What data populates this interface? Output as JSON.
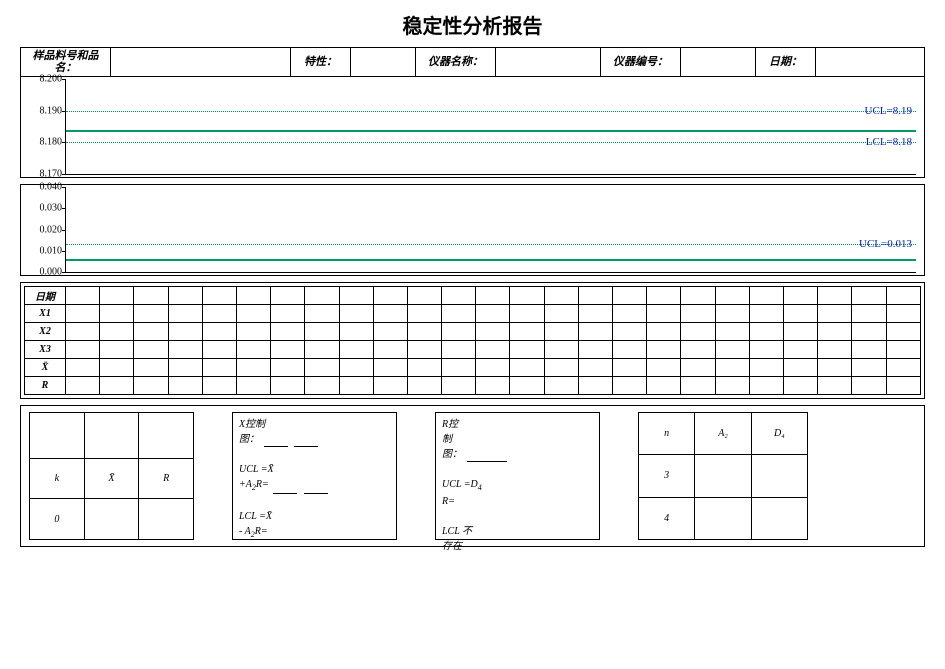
{
  "title": "稳定性分析报告",
  "header": {
    "sample_label": "样品料号和品\n名：",
    "char_label": "特性：",
    "instr_name_label": "仪器名称：",
    "instr_id_label": "仪器编号：",
    "date_label": "日期："
  },
  "chart1": {
    "type": "control-chart",
    "ylim": [
      8.17,
      8.2
    ],
    "yticks": [
      8.2,
      8.19,
      8.18,
      8.17
    ],
    "ytick_labels": [
      "8.200",
      "8.190",
      "8.180",
      "8.170"
    ],
    "ucl": {
      "value": 8.19,
      "label": "UCL=8.19",
      "style": "dotted",
      "color": "#009966",
      "label_color": "#0020c0"
    },
    "center": {
      "value": 8.184,
      "style": "solid",
      "color": "#009966"
    },
    "lcl": {
      "value": 8.18,
      "label": "LCL=8.18",
      "style": "dotted",
      "color": "#009966",
      "label_color": "#0020c0"
    },
    "background_color": "#ffffff",
    "axis_color": "#000000"
  },
  "chart2": {
    "type": "control-chart",
    "ylim": [
      0.0,
      0.04
    ],
    "yticks": [
      0.04,
      0.03,
      0.02,
      0.01,
      0.0
    ],
    "ytick_labels": [
      "0.040",
      "0.030",
      "0.020",
      "0.010",
      "0.000"
    ],
    "ucl": {
      "value": 0.013,
      "label": "UCL=0.013",
      "style": "dotted",
      "color": "#009966",
      "label_color": "#0020c0"
    },
    "center": {
      "value": 0.006,
      "style": "solid",
      "color": "#009966"
    },
    "background_color": "#ffffff",
    "axis_color": "#000000"
  },
  "grid": {
    "row_labels": [
      "日期",
      "X1",
      "X2",
      "X3",
      "X̄",
      "R"
    ],
    "columns": 25
  },
  "block1": {
    "header_cells": [
      "",
      "",
      ""
    ],
    "row2": [
      "k",
      "X̄",
      "R"
    ],
    "row3": [
      "0",
      "",
      ""
    ]
  },
  "block2": {
    "title1": "X控制",
    "title2": "图：",
    "line1a": "UCL =X̄",
    "line1b": "+A",
    "line1c": "R=",
    "line2a": "LCL =X̄",
    "line2b": "- A",
    "line2c": "R=",
    "sub2": "2"
  },
  "block3": {
    "title1": "R控",
    "title2": "制",
    "title3": "图：",
    "line1a": "UCL =D",
    "line1b": "R=",
    "sub4": "4",
    "line2": "LCL 不",
    "line3": "存在"
  },
  "block4": {
    "headers": [
      "n",
      "A₂",
      "D₄"
    ],
    "rows": [
      [
        "3",
        "",
        ""
      ],
      [
        "4",
        "",
        ""
      ]
    ]
  }
}
